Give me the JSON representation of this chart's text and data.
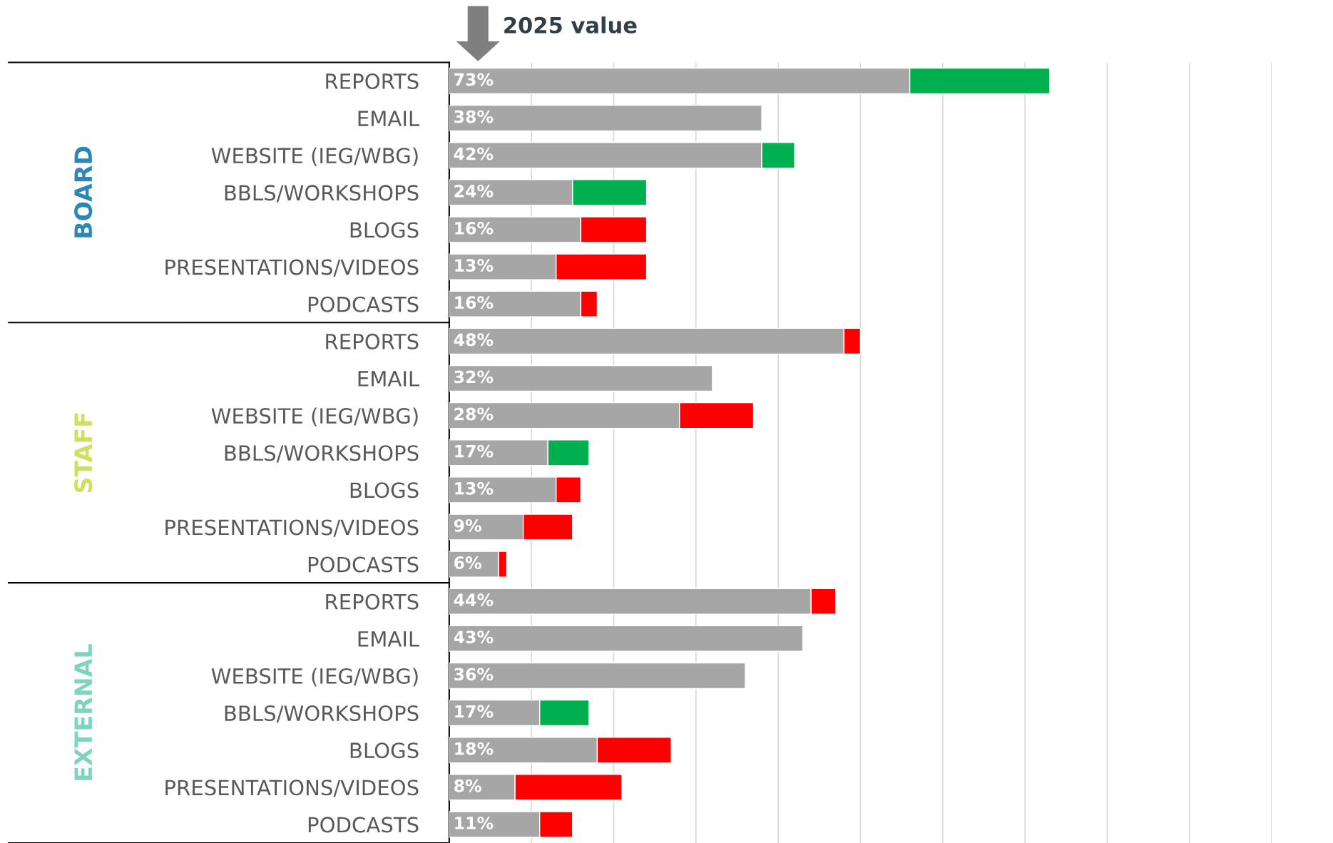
{
  "chart_data": {
    "type": "bar",
    "orientation": "horizontal",
    "stacked": true,
    "categories": [
      "REPORTS",
      "EMAIL",
      "WEBSITE (IEG/WBG)",
      "BBLS/WORKSHOPS",
      "BLOGS",
      "PRESENTATIONS/VIDEOS",
      "PODCASTS",
      "REPORTS",
      "EMAIL",
      "WEBSITE (IEG/WBG)",
      "BBLS/WORKSHOPS",
      "BLOGS",
      "PRESENTATIONS/VIDEOS",
      "PODCASTS",
      "REPORTS",
      "EMAIL",
      "WEBSITE (IEG/WBG)",
      "BBLS/WORKSHOPS",
      "BLOGS",
      "PRESENTATIONS/VIDEOS",
      "PODCASTS"
    ],
    "series": [
      {
        "color": "#a6a6a6",
        "values": [
          56,
          38,
          38,
          15,
          16,
          13,
          16,
          48,
          32,
          28,
          12,
          13,
          9,
          6,
          44,
          43,
          36,
          11,
          18,
          8,
          11
        ],
        "value_labels": [
          null,
          "38%",
          null,
          null,
          "16%",
          "13%",
          "16%",
          "48%",
          "32%",
          "28%",
          null,
          "13%",
          "9%",
          "6%",
          "44%",
          "43%",
          "36%",
          null,
          "18%",
          "8%",
          "11%"
        ]
      },
      {
        "color": "#00b050",
        "values": [
          17,
          null,
          4,
          9,
          null,
          null,
          null,
          null,
          null,
          null,
          5,
          null,
          null,
          null,
          null,
          null,
          null,
          6,
          null,
          null,
          null
        ]
      },
      {
        "color": "#ff0000",
        "values": [
          null,
          null,
          null,
          null,
          8,
          11,
          2,
          2,
          null,
          9,
          null,
          3,
          6,
          1,
          3,
          null,
          null,
          null,
          9,
          13,
          4
        ]
      }
    ],
    "totals": [
      "73%",
      null,
      "42%",
      "24%",
      null,
      null,
      null,
      null,
      null,
      null,
      "17%",
      null,
      null,
      null,
      null,
      null,
      null,
      "17%",
      null,
      null,
      null
    ],
    "xlim": [
      0,
      100
    ],
    "xticks": [
      {
        "value": 10,
        "label": null
      },
      {
        "value": 20,
        "label": null
      },
      {
        "value": 30,
        "label": null
      },
      {
        "value": 40,
        "label": null
      },
      {
        "value": 50,
        "label": null
      },
      {
        "value": 60,
        "label": null
      },
      {
        "value": 70,
        "label": null
      },
      {
        "value": 80,
        "label": null
      },
      {
        "value": 90,
        "label": null
      },
      {
        "value": 100,
        "label": null
      }
    ],
    "tick_labels": "y",
    "grid": "x",
    "legend": false,
    "annotations": [
      "2025 value",
      "BOARD",
      "STAFF",
      "EXTERNAL"
    ]
  }
}
